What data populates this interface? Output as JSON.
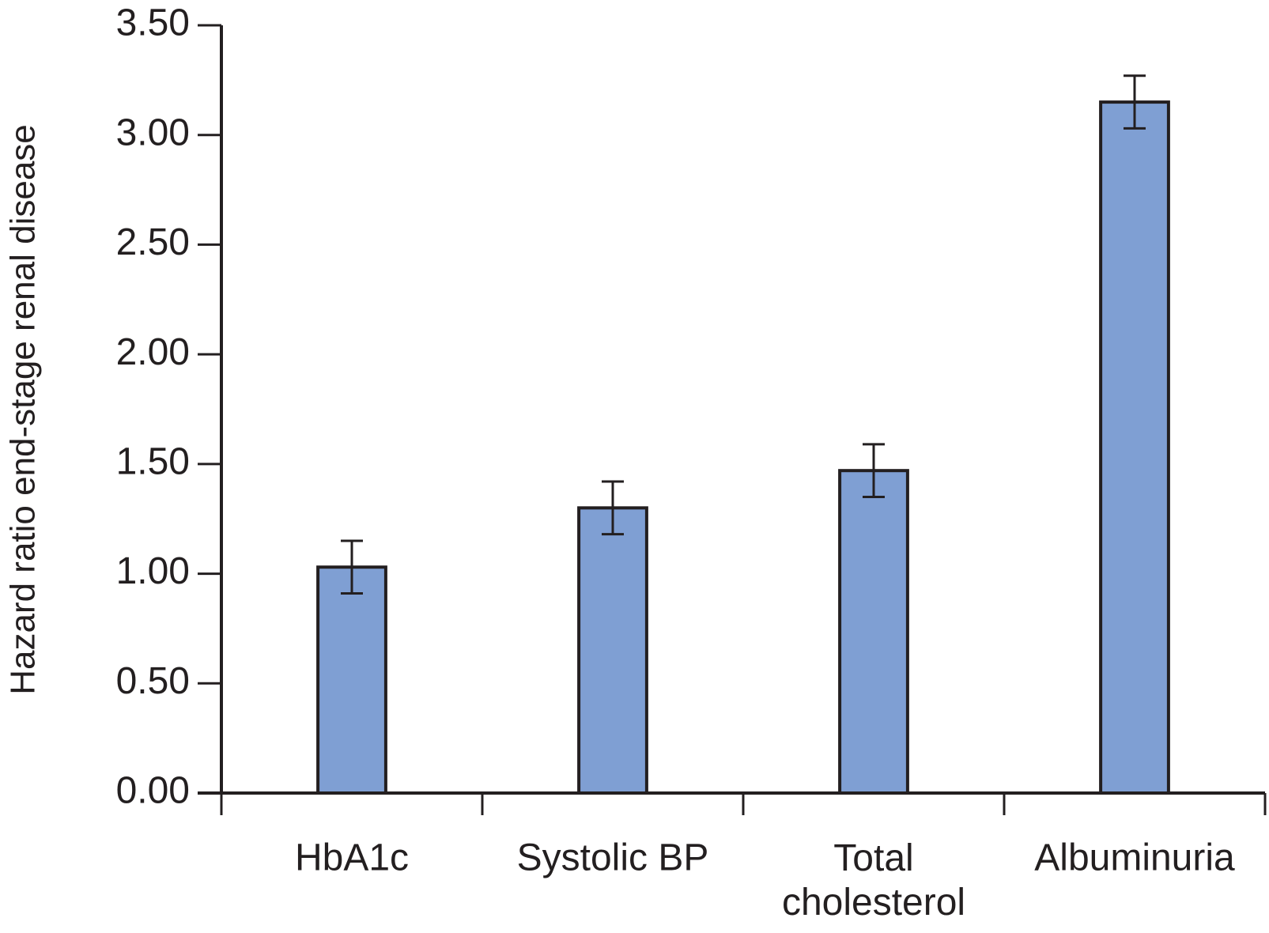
{
  "chart_data": {
    "type": "bar",
    "y_axis_label": "Hazard ratio end-stage renal disease",
    "categories": [
      "HbA1c",
      "Systolic BP",
      "Total cholesterol",
      "Albuminuria"
    ],
    "values": [
      1.03,
      1.3,
      1.47,
      3.15
    ],
    "errors": [
      0.12,
      0.12,
      0.12,
      0.12
    ],
    "color": "#7f9fd3",
    "ylim": [
      0,
      3.5
    ],
    "yticks": [
      {
        "value": 0,
        "label": "0.00"
      },
      {
        "value": 0.5,
        "label": "0.50"
      },
      {
        "value": 1,
        "label": "1.00"
      },
      {
        "value": 1.5,
        "label": "1.50"
      },
      {
        "value": 2,
        "label": "2.00"
      },
      {
        "value": 2.5,
        "label": "2.50"
      },
      {
        "value": 3,
        "label": "3.00"
      },
      {
        "value": 3.5,
        "label": "3.50"
      }
    ],
    "grid": false
  }
}
